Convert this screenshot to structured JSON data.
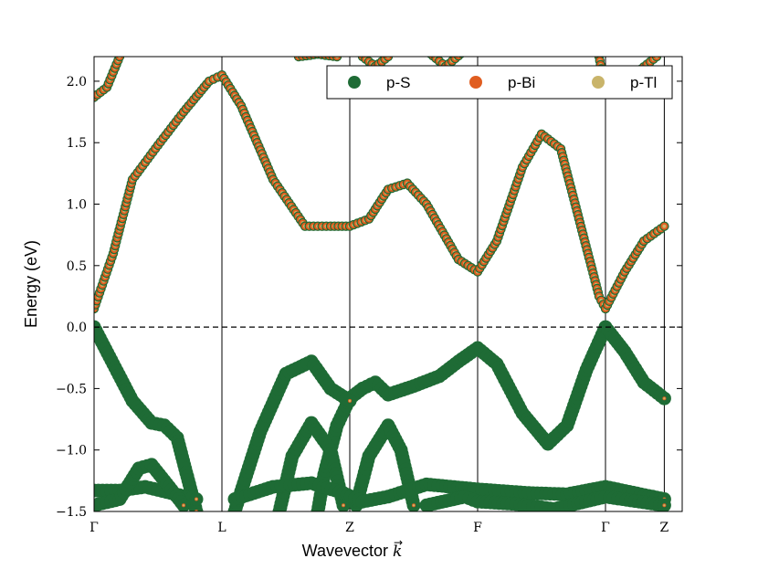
{
  "chart_data": {
    "type": "scatter",
    "title": "",
    "xlabel": "Wavevector",
    "xlabel_symbol": "k",
    "ylabel": "Energy (eV)",
    "ylim": [
      -1.5,
      2.2
    ],
    "yticks": [
      -1.5,
      -1.0,
      -0.5,
      0.0,
      0.5,
      1.0,
      1.5,
      2.0
    ],
    "ytick_labels": [
      "−1.5",
      "−1.0",
      "−0.5",
      "0.0",
      "0.5",
      "1.0",
      "1.5",
      "2.0"
    ],
    "xlim": [
      0,
      4.6
    ],
    "high_symmetry_points": [
      {
        "label": "Γ",
        "x": 0.0
      },
      {
        "label": "L",
        "x": 1.0
      },
      {
        "label": "Z",
        "x": 2.0
      },
      {
        "label": "F",
        "x": 3.0
      },
      {
        "label": "Γ",
        "x": 4.0
      },
      {
        "label": "Z",
        "x": 4.46
      }
    ],
    "fermi_level": 0.0,
    "legend": {
      "placement": "top-right",
      "entries": [
        "p-S",
        "p-Bi",
        "p-Tl"
      ]
    },
    "colors": {
      "p-S": "#1e6b35",
      "p-Bi": "#e05d20",
      "p-Tl": "#c9b46a"
    },
    "series": [
      {
        "name": "p-S",
        "color": "#1e6b35"
      },
      {
        "name": "p-Bi",
        "color": "#e05d20"
      },
      {
        "name": "p-Tl",
        "color": "#c9b46a"
      }
    ],
    "bands": [
      {
        "name": "conduction-1",
        "kind": "conduction",
        "points": [
          [
            0,
            0.15
          ],
          [
            0.15,
            0.6
          ],
          [
            0.3,
            1.2
          ],
          [
            0.5,
            1.48
          ],
          [
            0.7,
            1.75
          ],
          [
            0.9,
            2.0
          ],
          [
            1.0,
            2.05
          ],
          [
            1.15,
            1.8
          ],
          [
            1.4,
            1.2
          ],
          [
            1.65,
            0.82
          ],
          [
            1.85,
            0.82
          ],
          [
            2.0,
            0.82
          ],
          [
            2.15,
            0.88
          ],
          [
            2.3,
            1.12
          ],
          [
            2.45,
            1.17
          ],
          [
            2.6,
            1.0
          ],
          [
            2.85,
            0.55
          ],
          [
            3.0,
            0.45
          ],
          [
            3.15,
            0.7
          ],
          [
            3.35,
            1.3
          ],
          [
            3.5,
            1.57
          ],
          [
            3.65,
            1.45
          ],
          [
            3.8,
            0.85
          ],
          [
            3.95,
            0.25
          ],
          [
            4.0,
            0.15
          ],
          [
            4.15,
            0.45
          ],
          [
            4.3,
            0.7
          ],
          [
            4.46,
            0.82
          ]
        ]
      },
      {
        "name": "conduction-2",
        "kind": "conduction",
        "points": [
          [
            0,
            1.87
          ],
          [
            0.1,
            1.95
          ],
          [
            0.2,
            2.2
          ]
        ]
      },
      {
        "name": "conduction-3",
        "kind": "conduction",
        "points": [
          [
            1.6,
            2.2
          ],
          [
            1.75,
            2.22
          ],
          [
            1.9,
            2.2
          ]
        ]
      },
      {
        "name": "conduction-4",
        "kind": "conduction",
        "points": [
          [
            2.1,
            2.2
          ],
          [
            2.2,
            2.12
          ],
          [
            2.3,
            2.2
          ]
        ]
      },
      {
        "name": "conduction-5",
        "kind": "conduction",
        "points": [
          [
            2.6,
            2.25
          ],
          [
            2.75,
            2.12
          ],
          [
            2.9,
            2.25
          ]
        ]
      },
      {
        "name": "conduction-6",
        "kind": "conduction",
        "points": [
          [
            3.95,
            2.2
          ],
          [
            4.0,
            1.9
          ],
          [
            4.1,
            1.95
          ],
          [
            4.4,
            2.2
          ]
        ]
      },
      {
        "name": "valence-1",
        "kind": "valence",
        "points": [
          [
            0,
            0.0
          ],
          [
            0.15,
            -0.3
          ],
          [
            0.3,
            -0.6
          ],
          [
            0.45,
            -0.78
          ],
          [
            0.55,
            -0.8
          ],
          [
            0.65,
            -0.9
          ],
          [
            0.8,
            -1.5
          ]
        ]
      },
      {
        "name": "valence-2",
        "kind": "valence",
        "points": [
          [
            1.75,
            -1.5
          ],
          [
            1.8,
            -1.2
          ],
          [
            1.9,
            -0.8
          ],
          [
            2.0,
            -0.58
          ],
          [
            2.1,
            -0.5
          ],
          [
            2.2,
            -0.45
          ],
          [
            2.3,
            -0.55
          ],
          [
            2.5,
            -0.48
          ],
          [
            2.7,
            -0.4
          ],
          [
            2.85,
            -0.28
          ],
          [
            3.0,
            -0.17
          ],
          [
            3.15,
            -0.3
          ],
          [
            3.35,
            -0.7
          ],
          [
            3.55,
            -0.95
          ],
          [
            3.7,
            -0.8
          ],
          [
            3.85,
            -0.35
          ],
          [
            4.0,
            0.0
          ],
          [
            4.15,
            -0.2
          ],
          [
            4.3,
            -0.45
          ],
          [
            4.46,
            -0.58
          ]
        ]
      },
      {
        "name": "valence-3",
        "kind": "valence",
        "points": [
          [
            1.1,
            -1.5
          ],
          [
            1.3,
            -0.85
          ],
          [
            1.5,
            -0.38
          ],
          [
            1.7,
            -0.28
          ],
          [
            1.85,
            -0.5
          ],
          [
            2.0,
            -0.6
          ]
        ]
      },
      {
        "name": "valence-4",
        "kind": "valence",
        "points": [
          [
            1.45,
            -1.5
          ],
          [
            1.55,
            -1.05
          ],
          [
            1.7,
            -0.78
          ],
          [
            1.85,
            -1.0
          ],
          [
            1.95,
            -1.45
          ]
        ]
      },
      {
        "name": "valence-5",
        "kind": "valence",
        "points": [
          [
            2.05,
            -1.45
          ],
          [
            2.15,
            -1.05
          ],
          [
            2.3,
            -0.8
          ],
          [
            2.4,
            -1.0
          ],
          [
            2.5,
            -1.45
          ]
        ]
      },
      {
        "name": "valence-6",
        "kind": "valence",
        "points": [
          [
            0,
            -1.33
          ],
          [
            0.2,
            -1.33
          ],
          [
            0.4,
            -1.3
          ],
          [
            0.6,
            -1.35
          ],
          [
            0.8,
            -1.4
          ]
        ]
      },
      {
        "name": "valence-7",
        "kind": "valence",
        "points": [
          [
            0,
            -1.45
          ],
          [
            0.2,
            -1.4
          ],
          [
            0.35,
            -1.15
          ],
          [
            0.45,
            -1.12
          ],
          [
            0.55,
            -1.25
          ],
          [
            0.7,
            -1.45
          ]
        ]
      },
      {
        "name": "valence-8",
        "kind": "valence",
        "points": [
          [
            1.1,
            -1.4
          ],
          [
            1.4,
            -1.3
          ],
          [
            1.7,
            -1.27
          ],
          [
            1.95,
            -1.35
          ],
          [
            2.1,
            -1.42
          ],
          [
            2.3,
            -1.38
          ],
          [
            2.6,
            -1.28
          ],
          [
            3.0,
            -1.32
          ],
          [
            3.4,
            -1.35
          ],
          [
            3.7,
            -1.36
          ],
          [
            4.0,
            -1.3
          ],
          [
            4.46,
            -1.4
          ]
        ]
      },
      {
        "name": "valence-9",
        "kind": "valence",
        "points": [
          [
            2.6,
            -1.45
          ],
          [
            2.9,
            -1.38
          ],
          [
            3.0,
            -1.42
          ],
          [
            3.3,
            -1.44
          ],
          [
            3.6,
            -1.48
          ],
          [
            4.0,
            -1.38
          ],
          [
            4.46,
            -1.45
          ]
        ]
      }
    ]
  }
}
